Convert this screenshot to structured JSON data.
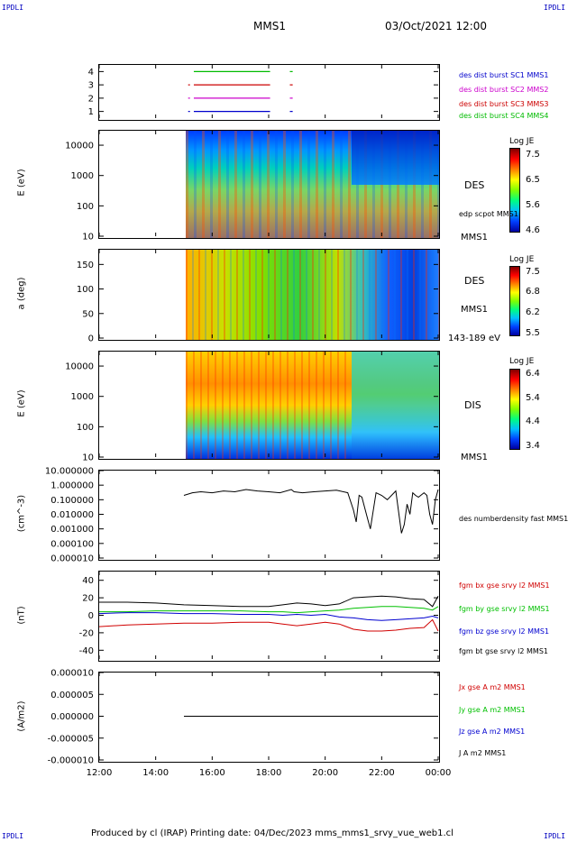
{
  "corners": {
    "top_left": "IPDLI",
    "top_right": "IPDLI",
    "bottom_left": "IPDLI",
    "bottom_right": "IPDLI"
  },
  "header": {
    "spacecraft": "MMS1",
    "datetime": "03/Oct/2021 12:00"
  },
  "footer": {
    "text": "Produced by cl (IRAP)   Printing date: 04/Dec/2023   mms_mms1_srvy_vue_web1.cl"
  },
  "colors": {
    "fgm_bx": "#d00000",
    "fgm_by": "#00c000",
    "fgm_bz": "#0000d0",
    "fgm_bt": "#000000",
    "burst_sc1": "#0000cc",
    "burst_sc2": "#cc00cc",
    "burst_sc3": "#cc0000",
    "burst_sc4": "#00bb00"
  },
  "chart_data": [
    {
      "type": "line",
      "panel": "burst",
      "yticks": [
        "1",
        "2",
        "3",
        "4"
      ],
      "ylim": [
        0.5,
        4.5
      ],
      "xlim_hours": [
        12,
        24
      ],
      "series": [
        {
          "name": "des dist burst SC1 MMS1",
          "sc": 1,
          "segments": [
            [
              15.15,
              15.15
            ],
            [
              15.35,
              18.05
            ],
            [
              18.75,
              18.85
            ]
          ]
        },
        {
          "name": "des dist burst SC2 MMS2",
          "sc": 2,
          "segments": [
            [
              15.15,
              15.15
            ],
            [
              15.35,
              18.05
            ],
            [
              18.75,
              18.85
            ]
          ]
        },
        {
          "name": "des dist burst SC3 MMS3",
          "sc": 3,
          "segments": [
            [
              15.15,
              15.15
            ],
            [
              15.35,
              18.05
            ],
            [
              18.75,
              18.85
            ]
          ]
        },
        {
          "name": "des dist burst SC4 MMS4",
          "sc": 4,
          "segments": [
            [
              15.35,
              18.05
            ],
            [
              18.75,
              18.85
            ]
          ]
        }
      ]
    },
    {
      "type": "heatmap",
      "panel": "des_energy",
      "ylabel": "E (eV)",
      "yscale": "log",
      "ylim": [
        10,
        30000
      ],
      "yticks": [
        "10",
        "100",
        "1000",
        "10000"
      ],
      "xlim_hours": [
        12,
        24
      ],
      "data_start_hour": 15.0,
      "label": "DES",
      "overlay_label": "edp scpot MMS1",
      "sc_label": "MMS1",
      "colorbar": {
        "title": "Log JE",
        "ticks": [
          "7.5",
          "6.5",
          "5.6",
          "4.6"
        ],
        "range": [
          4.6,
          7.5
        ]
      }
    },
    {
      "type": "heatmap",
      "panel": "des_pitch",
      "ylabel": "a (deg)",
      "ylim": [
        0,
        180
      ],
      "yticks": [
        "0",
        "50",
        "100",
        "150"
      ],
      "xlim_hours": [
        12,
        24
      ],
      "data_start_hour": 15.0,
      "label": "DES",
      "sc_label": "MMS1",
      "energy_range": "143-189 eV",
      "colorbar": {
        "title": "Log JE",
        "ticks": [
          "7.5",
          "6.8",
          "6.2",
          "5.5"
        ],
        "range": [
          5.5,
          7.5
        ]
      }
    },
    {
      "type": "heatmap",
      "panel": "dis_energy",
      "ylabel": "E (eV)",
      "yscale": "log",
      "ylim": [
        10,
        30000
      ],
      "yticks": [
        "10",
        "100",
        "1000",
        "10000"
      ],
      "xlim_hours": [
        12,
        24
      ],
      "data_start_hour": 15.0,
      "label": "DIS",
      "sc_label": "MMS1",
      "colorbar": {
        "title": "Log JE",
        "ticks": [
          "6.4",
          "5.4",
          "4.4",
          "3.4"
        ],
        "range": [
          3.4,
          6.4
        ]
      }
    },
    {
      "type": "line",
      "panel": "density",
      "ylabel": "(cm^-3)",
      "yscale": "log",
      "ylim": [
        1e-05,
        10
      ],
      "yticks": [
        "10.000000",
        "1.000000",
        "0.100000",
        "0.010000",
        "0.001000",
        "0.000100",
        "0.000010"
      ],
      "xlim_hours": [
        12,
        24
      ],
      "series": [
        {
          "name": "des numberdensity fast MMS1",
          "x": [
            15.0,
            15.3,
            15.6,
            16.0,
            16.4,
            16.8,
            17.2,
            17.6,
            18.0,
            18.4,
            18.8,
            18.9,
            19.2,
            19.6,
            20.0,
            20.4,
            20.8,
            21.0,
            21.1,
            21.2,
            21.3,
            21.5,
            21.6,
            21.8,
            22.0,
            22.2,
            22.5,
            22.7,
            22.8,
            22.9,
            23.0,
            23.1,
            23.2,
            23.3,
            23.5,
            23.6,
            23.7,
            23.8,
            23.9,
            24.0
          ],
          "y": [
            0.2,
            0.3,
            0.35,
            0.3,
            0.4,
            0.35,
            0.5,
            0.4,
            0.35,
            0.3,
            0.5,
            0.35,
            0.3,
            0.35,
            0.4,
            0.45,
            0.3,
            0.02,
            0.003,
            0.2,
            0.15,
            0.005,
            0.001,
            0.3,
            0.2,
            0.1,
            0.4,
            0.0005,
            0.002,
            0.05,
            0.01,
            0.3,
            0.2,
            0.15,
            0.3,
            0.2,
            0.01,
            0.002,
            0.1,
            0.5
          ]
        }
      ]
    },
    {
      "type": "line",
      "panel": "fgm",
      "ylabel": "(nT)",
      "ylim": [
        -50,
        50
      ],
      "yticks": [
        "40",
        "20",
        "0",
        "-20",
        "-40"
      ],
      "xlim_hours": [
        12,
        24
      ],
      "series": [
        {
          "name": "fgm bx gse srvy l2 MMS1",
          "x": [
            12,
            13,
            14,
            15,
            16,
            17,
            18,
            18.5,
            19,
            19.5,
            20,
            20.5,
            21,
            21.5,
            22,
            22.5,
            23,
            23.5,
            23.8,
            24
          ],
          "y": [
            -13,
            -11,
            -10,
            -9,
            -9,
            -8,
            -8,
            -10,
            -12,
            -10,
            -8,
            -10,
            -16,
            -18,
            -18,
            -17,
            -15,
            -14,
            -5,
            -18
          ]
        },
        {
          "name": "fgm by gse srvy l2 MMS1",
          "x": [
            12,
            13,
            14,
            15,
            16,
            17,
            18,
            18.5,
            19,
            19.5,
            20,
            20.5,
            21,
            21.5,
            22,
            22.5,
            23,
            23.5,
            23.8,
            24
          ],
          "y": [
            4,
            4,
            5,
            5,
            5,
            5,
            4,
            4,
            3,
            4,
            5,
            6,
            8,
            9,
            10,
            10,
            9,
            8,
            6,
            10
          ]
        },
        {
          "name": "fgm bz gse srvy l2 MMS1",
          "x": [
            12,
            13,
            14,
            15,
            16,
            17,
            18,
            18.5,
            19,
            19.5,
            20,
            20.5,
            21,
            21.5,
            22,
            22.5,
            23,
            23.5,
            23.8,
            24
          ],
          "y": [
            2,
            3,
            3,
            2,
            2,
            1,
            1,
            0,
            1,
            0,
            1,
            -2,
            -3,
            -5,
            -6,
            -5,
            -4,
            -3,
            -1,
            -3
          ]
        },
        {
          "name": "fgm bt gse srvy l2 MMS1",
          "x": [
            12,
            13,
            14,
            15,
            16,
            17,
            18,
            18.5,
            19,
            19.5,
            20,
            20.5,
            21,
            21.5,
            22,
            22.5,
            23,
            23.5,
            23.8,
            24
          ],
          "y": [
            15,
            15,
            14,
            12,
            11,
            10,
            10,
            12,
            14,
            13,
            11,
            13,
            20,
            21,
            22,
            21,
            19,
            18,
            10,
            22
          ]
        }
      ]
    },
    {
      "type": "line",
      "panel": "current",
      "ylabel": "(A/m2)",
      "ylim": [
        -1e-05,
        1e-05
      ],
      "yticks": [
        "0.000010",
        "0.000005",
        "0.000000",
        "-0.000005",
        "-0.000010"
      ],
      "xlim_hours": [
        12,
        24
      ],
      "xticks": [
        "12:00",
        "14:00",
        "16:00",
        "18:00",
        "20:00",
        "22:00",
        "00:00"
      ],
      "series": [
        {
          "name": "Jx gse A m2 MMS1",
          "x": [],
          "y": []
        },
        {
          "name": "Jy gse A m2 MMS1",
          "x": [],
          "y": []
        },
        {
          "name": "Jz gse A m2 MMS1",
          "x": [],
          "y": []
        },
        {
          "name": "J A m2 MMS1",
          "x": [
            15.0,
            24.0
          ],
          "y": [
            0,
            0
          ]
        }
      ]
    }
  ]
}
